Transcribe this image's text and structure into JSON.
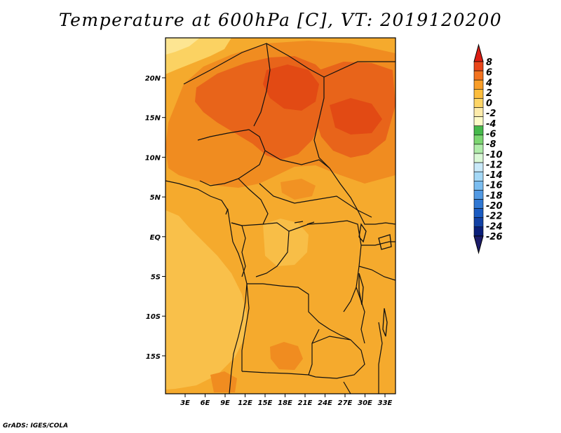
{
  "title": "Temperature at 600hPa [C], VT: 2019120200",
  "credit": "GrADS: IGES/COLA",
  "map": {
    "lat_labels": [
      "20N",
      "15N",
      "10N",
      "5N",
      "EQ",
      "5S",
      "10S",
      "15S"
    ],
    "lon_labels": [
      "3E",
      "6E",
      "9E",
      "12E",
      "15E",
      "18E",
      "21E",
      "24E",
      "27E",
      "30E",
      "33E"
    ],
    "colors": {
      "base": "#f5aa2d",
      "warm": "#f08c20",
      "hot": "#e8641a",
      "hotter": "#e24a14",
      "pale": "#fbd262",
      "paler": "#fde592",
      "border": "#111111"
    }
  },
  "colorbar": {
    "labels": [
      "8",
      "6",
      "4",
      "2",
      "0",
      "-2",
      "-4",
      "-6",
      "-8",
      "-10",
      "-12",
      "-14",
      "-16",
      "-18",
      "-20",
      "-22",
      "-24",
      "-26"
    ],
    "colors": [
      "#dc1e14",
      "#e9461a",
      "#f3731f",
      "#f99e28",
      "#fdbd3c",
      "#fdd566",
      "#fdebab",
      "#fdfbc8",
      "#46b94b",
      "#7cd671",
      "#b0ecaa",
      "#daf8d6",
      "#c9e9f9",
      "#a4d8f6",
      "#7bbdf0",
      "#5199e3",
      "#2f77d3",
      "#1a5bc2",
      "#1241a5",
      "#0b1f7a",
      "#1c1c6a"
    ]
  }
}
